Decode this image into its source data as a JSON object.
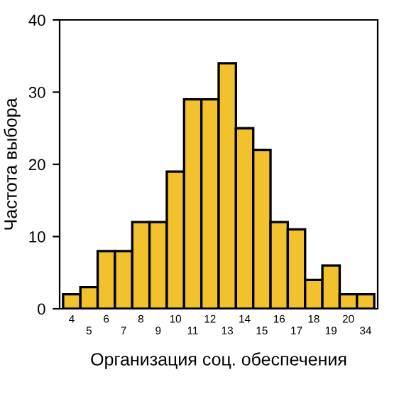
{
  "chart_data": {
    "type": "bar",
    "xlabel": "Организация соц. обеспечения",
    "ylabel": "Частота выбора",
    "categories": [
      "4",
      "5",
      "6",
      "7",
      "8",
      "9",
      "10",
      "11",
      "12",
      "13",
      "14",
      "15",
      "16",
      "17",
      "18",
      "19",
      "20",
      "34"
    ],
    "values": [
      2,
      3,
      8,
      8,
      12,
      12,
      19,
      29,
      29,
      34,
      25,
      22,
      12,
      11,
      4,
      6,
      2,
      2
    ],
    "color": "#f2c12e",
    "ylim": [
      0,
      40
    ],
    "yticks": [
      0,
      10,
      20,
      30,
      40
    ],
    "grid": false,
    "legend": false
  }
}
